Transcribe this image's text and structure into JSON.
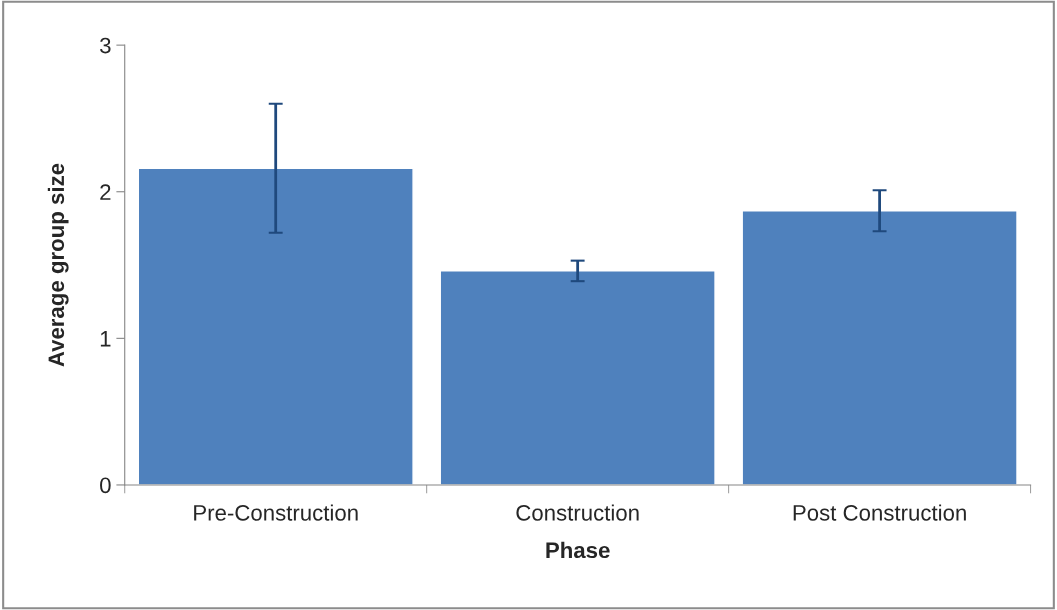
{
  "chart_data": {
    "type": "bar",
    "xlabel": "Phase",
    "ylabel": "Average group size",
    "categories": [
      "Pre-Construction",
      "Construction",
      "Post Construction"
    ],
    "values": [
      2.16,
      1.46,
      1.87
    ],
    "errors": [
      0.44,
      0.07,
      0.14
    ],
    "color": "#4f81bd",
    "ylim": [
      0,
      3
    ],
    "yticks": [
      0,
      1,
      2,
      3
    ],
    "grid": false,
    "legend": false
  }
}
